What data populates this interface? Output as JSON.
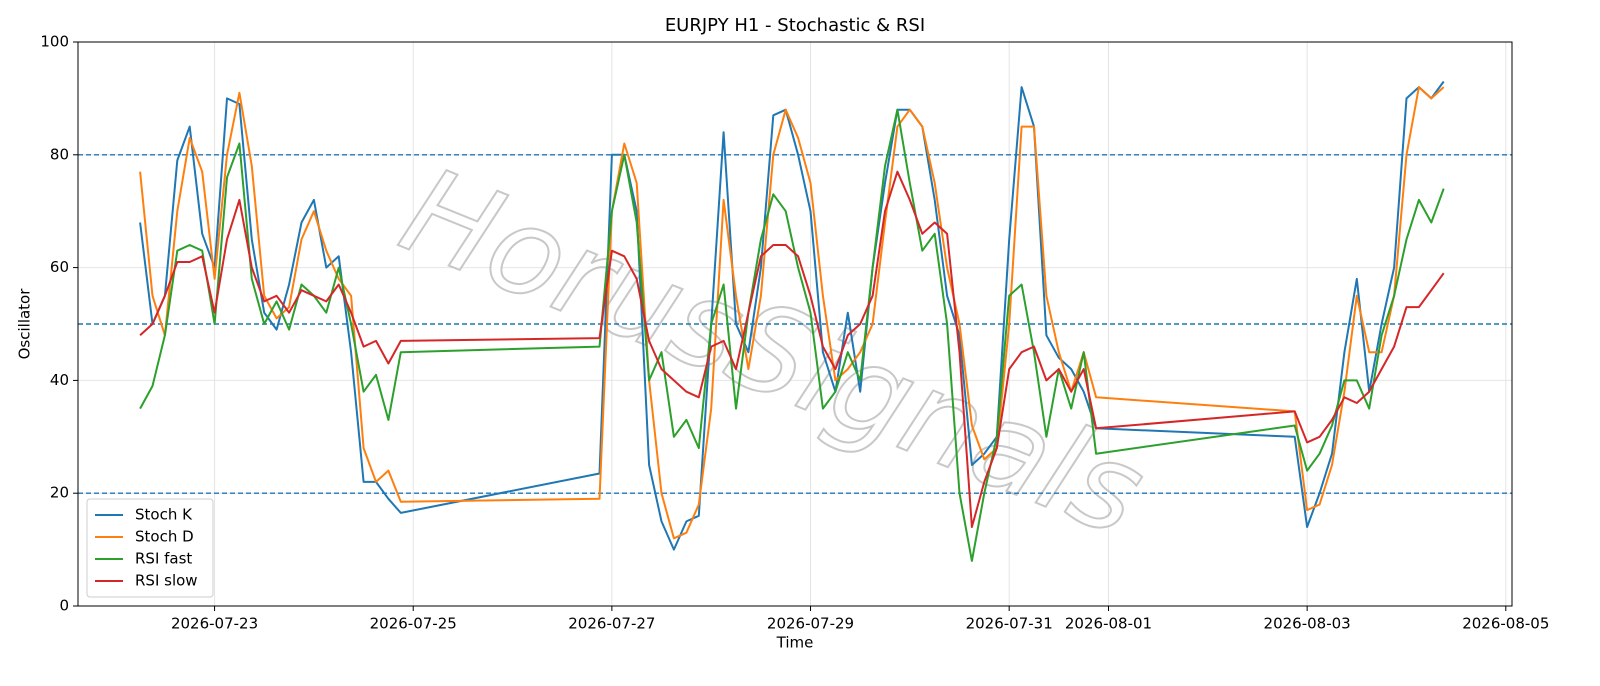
{
  "chart_data": {
    "type": "line",
    "title": "EURJPY H1 - Stochastic & RSI",
    "xlabel": "Time",
    "ylabel": "Oscillator",
    "watermark": "HorusSignals",
    "x": [
      "2026-07-22 06:00",
      "2026-07-22 09:00",
      "2026-07-22 12:00",
      "2026-07-22 15:00",
      "2026-07-22 18:00",
      "2026-07-22 21:00",
      "2026-07-23 00:00",
      "2026-07-23 03:00",
      "2026-07-23 06:00",
      "2026-07-23 09:00",
      "2026-07-23 12:00",
      "2026-07-23 15:00",
      "2026-07-23 18:00",
      "2026-07-23 21:00",
      "2026-07-24 00:00",
      "2026-07-24 03:00",
      "2026-07-24 06:00",
      "2026-07-24 09:00",
      "2026-07-24 12:00",
      "2026-07-24 15:00",
      "2026-07-24 18:00",
      "2026-07-24 21:00",
      "2026-07-26 21:00",
      "2026-07-27 00:00",
      "2026-07-27 03:00",
      "2026-07-27 06:00",
      "2026-07-27 09:00",
      "2026-07-27 12:00",
      "2026-07-27 15:00",
      "2026-07-27 18:00",
      "2026-07-27 21:00",
      "2026-07-28 00:00",
      "2026-07-28 03:00",
      "2026-07-28 06:00",
      "2026-07-28 09:00",
      "2026-07-28 12:00",
      "2026-07-28 15:00",
      "2026-07-28 18:00",
      "2026-07-28 21:00",
      "2026-07-29 00:00",
      "2026-07-29 03:00",
      "2026-07-29 06:00",
      "2026-07-29 09:00",
      "2026-07-29 12:00",
      "2026-07-29 15:00",
      "2026-07-29 18:00",
      "2026-07-29 21:00",
      "2026-07-30 00:00",
      "2026-07-30 03:00",
      "2026-07-30 06:00",
      "2026-07-30 09:00",
      "2026-07-30 12:00",
      "2026-07-30 15:00",
      "2026-07-30 18:00",
      "2026-07-30 21:00",
      "2026-07-31 00:00",
      "2026-07-31 03:00",
      "2026-07-31 06:00",
      "2026-07-31 09:00",
      "2026-07-31 12:00",
      "2026-07-31 15:00",
      "2026-07-31 18:00",
      "2026-07-31 21:00",
      "2026-08-02 21:00",
      "2026-08-03 00:00",
      "2026-08-03 03:00",
      "2026-08-03 06:00",
      "2026-08-03 09:00",
      "2026-08-03 12:00",
      "2026-08-03 15:00",
      "2026-08-03 18:00",
      "2026-08-03 21:00",
      "2026-08-04 00:00",
      "2026-08-04 03:00",
      "2026-08-04 06:00",
      "2026-08-04 09:00"
    ],
    "series": [
      {
        "name": "Stoch K",
        "color": "#1f77b4",
        "values": [
          68,
          50,
          55,
          79,
          85,
          66,
          60,
          90,
          89,
          65,
          52,
          49,
          57,
          68,
          72,
          60,
          62,
          45,
          22,
          22,
          19,
          16.5,
          23.5,
          80,
          80,
          70,
          25,
          15,
          10,
          15,
          16,
          50,
          84,
          50,
          45,
          60,
          87,
          88,
          80,
          70,
          45,
          38,
          52,
          38,
          60,
          75,
          88,
          88,
          85,
          72,
          55,
          48,
          25,
          27,
          30,
          65,
          92,
          85,
          48,
          44,
          42,
          38,
          31.5,
          30,
          14,
          20,
          27,
          45,
          58,
          38,
          50,
          60,
          90,
          92,
          90,
          93
        ]
      },
      {
        "name": "Stoch D",
        "color": "#ff7f0e",
        "values": [
          77,
          55,
          48,
          70,
          83,
          77,
          58,
          80,
          91,
          78,
          55,
          51,
          53,
          65,
          70,
          63,
          58,
          55,
          28,
          22,
          24,
          18.5,
          19,
          70,
          82,
          75,
          40,
          20,
          12,
          13,
          18,
          35,
          72,
          55,
          42,
          55,
          80,
          88,
          83,
          75,
          55,
          40,
          42,
          45,
          50,
          68,
          85,
          88,
          85,
          75,
          60,
          50,
          32,
          26,
          28,
          50,
          85,
          85,
          55,
          45,
          38,
          45,
          37,
          34.5,
          17,
          18,
          25,
          38,
          55,
          45,
          45,
          55,
          80,
          92,
          90,
          92
        ]
      },
      {
        "name": "RSI fast",
        "color": "#2ca02c",
        "values": [
          35,
          39,
          48,
          63,
          64,
          63,
          50,
          76,
          82,
          58,
          50,
          54,
          49,
          57,
          55,
          52,
          60,
          50,
          38,
          41,
          33,
          45,
          46,
          70,
          80,
          68,
          40,
          45,
          30,
          33,
          28,
          50,
          57,
          35,
          52,
          65,
          73,
          70,
          60,
          52,
          35,
          38,
          45,
          40,
          60,
          78,
          88,
          75,
          63,
          66,
          50,
          20,
          8,
          20,
          30,
          55,
          57,
          45,
          30,
          42,
          35,
          45,
          27,
          32,
          24,
          27,
          32,
          40,
          40,
          35,
          48,
          55,
          65,
          72,
          68,
          74
        ]
      },
      {
        "name": "RSI slow",
        "color": "#d62728",
        "values": [
          48,
          50,
          55,
          61,
          61,
          62,
          52,
          65,
          72,
          60,
          54,
          55,
          52,
          56,
          55,
          54,
          57,
          52,
          46,
          47,
          43,
          47,
          47.5,
          63,
          62,
          58,
          47,
          42,
          40,
          38,
          37,
          46,
          47,
          42,
          52,
          62,
          64,
          64,
          62,
          55,
          46,
          42,
          48,
          50,
          55,
          70,
          77,
          72,
          66,
          68,
          66,
          45,
          14,
          22,
          28,
          42,
          45,
          46,
          40,
          42,
          38,
          42,
          31.5,
          34.5,
          29,
          30,
          33,
          37,
          36,
          38,
          42,
          46,
          53,
          53,
          56,
          59
        ]
      }
    ],
    "xlim": [
      "2026-07-21 15:00",
      "2026-08-05 01:30"
    ],
    "xticks": [
      "2026-07-23",
      "2026-07-25",
      "2026-07-27",
      "2026-07-29",
      "2026-07-31",
      "2026-08-01",
      "2026-08-03",
      "2026-08-05"
    ],
    "ylim": [
      0,
      100
    ],
    "yticks": [
      0,
      20,
      40,
      60,
      80,
      100
    ],
    "hlines": [
      20,
      50,
      80
    ],
    "hline_color": "#1f77b4",
    "grid": true,
    "legend": "lower left"
  }
}
